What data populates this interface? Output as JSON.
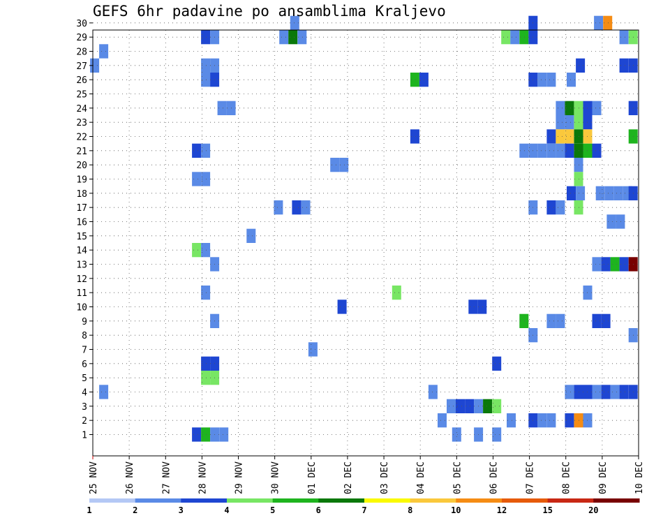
{
  "title": "GEFS 6hr padavine po ansamblima Kraljevo",
  "chart_data": {
    "type": "heatmap",
    "title": "GEFS 6hr padavine po ansamblima Kraljevo",
    "xlabel": "",
    "ylabel": "",
    "x_tick_labels": [
      "25 NOV",
      "26 NOV",
      "27 NOV",
      "28 NOV",
      "29 NOV",
      "30 NOV",
      "01 DEC",
      "02 DEC",
      "03 DEC",
      "04 DEC",
      "05 DEC",
      "06 DEC",
      "07 DEC",
      "08 DEC",
      "09 DEC",
      "10 DEC"
    ],
    "y_tick_labels": [
      "1",
      "2",
      "3",
      "4",
      "5",
      "6",
      "7",
      "8",
      "9",
      "10",
      "11",
      "12",
      "13",
      "14",
      "15",
      "16",
      "17",
      "18",
      "19",
      "20",
      "21",
      "22",
      "23",
      "24",
      "25",
      "26",
      "27",
      "28",
      "29",
      "30"
    ],
    "ylim": [
      0,
      30
    ],
    "grid": true,
    "colorbar": {
      "boundaries": [
        "1",
        "2",
        "3",
        "4",
        "5",
        "6",
        "7",
        "8",
        "10",
        "12",
        "15",
        "20"
      ],
      "colors": [
        "#b4c8f5",
        "#5a8ae6",
        "#1e46d2",
        "#78e664",
        "#1eb41e",
        "#0a780a",
        "#fafa00",
        "#fac83c",
        "#f58c14",
        "#e65a0a",
        "#c82814",
        "#780000"
      ]
    },
    "cells": [
      {
        "member": 30,
        "t": [
          5.55
        ],
        "c": 1
      },
      {
        "member": 30,
        "t": [
          12.1
        ],
        "c": 2
      },
      {
        "member": 30,
        "t": [
          13.9
        ],
        "c": 1
      },
      {
        "member": 30,
        "t": [
          14.15
        ],
        "c": 8
      },
      {
        "member": 29,
        "t": [
          3.1
        ],
        "c": 2
      },
      {
        "member": 29,
        "t": [
          3.35
        ],
        "c": 1
      },
      {
        "member": 29,
        "t": [
          5.25
        ],
        "c": 1
      },
      {
        "member": 29,
        "t": [
          5.5
        ],
        "c": 5
      },
      {
        "member": 29,
        "t": [
          5.75
        ],
        "c": 1
      },
      {
        "member": 29,
        "t": [
          11.35
        ],
        "c": 3
      },
      {
        "member": 29,
        "t": [
          11.6
        ],
        "c": 1
      },
      {
        "member": 29,
        "t": [
          11.85
        ],
        "c": 4
      },
      {
        "member": 29,
        "t": [
          12.1
        ],
        "c": 2
      },
      {
        "member": 29,
        "t": [
          14.6
        ],
        "c": 1
      },
      {
        "member": 29,
        "t": [
          14.85
        ],
        "c": 3
      },
      {
        "member": 28,
        "t": [
          0.3
        ],
        "c": 1
      },
      {
        "member": 27,
        "t": [
          0.05
        ],
        "c": 1
      },
      {
        "member": 27,
        "t": [
          3.1,
          3.35
        ],
        "c": 1
      },
      {
        "member": 27,
        "t": [
          13.4
        ],
        "c": 2
      },
      {
        "member": 27,
        "t": [
          14.6,
          14.85
        ],
        "c": 2
      },
      {
        "member": 26,
        "t": [
          3.1
        ],
        "c": 1
      },
      {
        "member": 26,
        "t": [
          3.35
        ],
        "c": 2
      },
      {
        "member": 26,
        "t": [
          8.85
        ],
        "c": 4
      },
      {
        "member": 26,
        "t": [
          9.1
        ],
        "c": 2
      },
      {
        "member": 26,
        "t": [
          12.1
        ],
        "c": 2
      },
      {
        "member": 26,
        "t": [
          12.35,
          12.6
        ],
        "c": 1
      },
      {
        "member": 26,
        "t": [
          13.15
        ],
        "c": 1
      },
      {
        "member": 24,
        "t": [
          3.55,
          3.8
        ],
        "c": 1
      },
      {
        "member": 24,
        "t": [
          12.85
        ],
        "c": 1
      },
      {
        "member": 24,
        "t": [
          13.1
        ],
        "c": 5
      },
      {
        "member": 24,
        "t": [
          13.35
        ],
        "c": 3
      },
      {
        "member": 24,
        "t": [
          13.6
        ],
        "c": 2
      },
      {
        "member": 24,
        "t": [
          13.85
        ],
        "c": 1
      },
      {
        "member": 24,
        "t": [
          14.85
        ],
        "c": 2
      },
      {
        "member": 23,
        "t": [
          12.85,
          13.1
        ],
        "c": 1
      },
      {
        "member": 23,
        "t": [
          13.35
        ],
        "c": 3
      },
      {
        "member": 23,
        "t": [
          13.6
        ],
        "c": 2
      },
      {
        "member": 22,
        "t": [
          8.85
        ],
        "c": 2
      },
      {
        "member": 22,
        "t": [
          12.6
        ],
        "c": 2
      },
      {
        "member": 22,
        "t": [
          12.85,
          13.1
        ],
        "c": 7
      },
      {
        "member": 22,
        "t": [
          13.35
        ],
        "c": 5
      },
      {
        "member": 22,
        "t": [
          13.6
        ],
        "c": 7
      },
      {
        "member": 22,
        "t": [
          14.85
        ],
        "c": 4
      },
      {
        "member": 21,
        "t": [
          2.85
        ],
        "c": 2
      },
      {
        "member": 21,
        "t": [
          3.1
        ],
        "c": 1
      },
      {
        "member": 21,
        "t": [
          11.85,
          12.1,
          12.35,
          12.6,
          12.85
        ],
        "c": 1
      },
      {
        "member": 21,
        "t": [
          13.1
        ],
        "c": 2
      },
      {
        "member": 21,
        "t": [
          13.35
        ],
        "c": 5
      },
      {
        "member": 21,
        "t": [
          13.6
        ],
        "c": 4
      },
      {
        "member": 21,
        "t": [
          13.85
        ],
        "c": 2
      },
      {
        "member": 20,
        "t": [
          6.65,
          6.9
        ],
        "c": 1
      },
      {
        "member": 20,
        "t": [
          13.35
        ],
        "c": 1
      },
      {
        "member": 19,
        "t": [
          2.85,
          3.1
        ],
        "c": 1
      },
      {
        "member": 19,
        "t": [
          13.35
        ],
        "c": 3
      },
      {
        "member": 18,
        "t": [
          13.15
        ],
        "c": 2
      },
      {
        "member": 18,
        "t": [
          13.4
        ],
        "c": 1
      },
      {
        "member": 18,
        "t": [
          13.95,
          14.2,
          14.45,
          14.7
        ],
        "c": 1
      },
      {
        "member": 18,
        "t": [
          14.85
        ],
        "c": 2
      },
      {
        "member": 17,
        "t": [
          5.1
        ],
        "c": 1
      },
      {
        "member": 17,
        "t": [
          5.6
        ],
        "c": 2
      },
      {
        "member": 17,
        "t": [
          5.85
        ],
        "c": 1
      },
      {
        "member": 17,
        "t": [
          12.1
        ],
        "c": 1
      },
      {
        "member": 17,
        "t": [
          12.6
        ],
        "c": 2
      },
      {
        "member": 17,
        "t": [
          12.85
        ],
        "c": 1
      },
      {
        "member": 17,
        "t": [
          13.35
        ],
        "c": 3
      },
      {
        "member": 16,
        "t": [
          14.25,
          14.5
        ],
        "c": 1
      },
      {
        "member": 15,
        "t": [
          4.35
        ],
        "c": 1
      },
      {
        "member": 14,
        "t": [
          2.85
        ],
        "c": 3
      },
      {
        "member": 14,
        "t": [
          3.1
        ],
        "c": 1
      },
      {
        "member": 13,
        "t": [
          3.35
        ],
        "c": 1
      },
      {
        "member": 13,
        "t": [
          13.85
        ],
        "c": 1
      },
      {
        "member": 13,
        "t": [
          14.1
        ],
        "c": 2
      },
      {
        "member": 13,
        "t": [
          14.35
        ],
        "c": 4
      },
      {
        "member": 13,
        "t": [
          14.6
        ],
        "c": 2
      },
      {
        "member": 13,
        "t": [
          14.85
        ],
        "c": 11
      },
      {
        "member": 11,
        "t": [
          8.35
        ],
        "c": 3
      },
      {
        "member": 11,
        "t": [
          3.1
        ],
        "c": 1
      },
      {
        "member": 11,
        "t": [
          13.6
        ],
        "c": 1
      },
      {
        "member": 10,
        "t": [
          6.85
        ],
        "c": 2
      },
      {
        "member": 10,
        "t": [
          10.45,
          10.7
        ],
        "c": 2
      },
      {
        "member": 9,
        "t": [
          3.35
        ],
        "c": 1
      },
      {
        "member": 9,
        "t": [
          11.85
        ],
        "c": 4
      },
      {
        "member": 9,
        "t": [
          12.6,
          12.85
        ],
        "c": 1
      },
      {
        "member": 9,
        "t": [
          13.85,
          14.1
        ],
        "c": 2
      },
      {
        "member": 8,
        "t": [
          12.1
        ],
        "c": 1
      },
      {
        "member": 8,
        "t": [
          14.85
        ],
        "c": 1
      },
      {
        "member": 7,
        "t": [
          6.05
        ],
        "c": 1
      },
      {
        "member": 6,
        "t": [
          3.1,
          3.35
        ],
        "c": 2
      },
      {
        "member": 6,
        "t": [
          11.1
        ],
        "c": 2
      },
      {
        "member": 5,
        "t": [
          3.1,
          3.35
        ],
        "c": 3
      },
      {
        "member": 4,
        "t": [
          0.3
        ],
        "c": 1
      },
      {
        "member": 4,
        "t": [
          9.35
        ],
        "c": 1
      },
      {
        "member": 4,
        "t": [
          13.1
        ],
        "c": 1
      },
      {
        "member": 4,
        "t": [
          13.35,
          13.6
        ],
        "c": 2
      },
      {
        "member": 4,
        "t": [
          13.85
        ],
        "c": 1
      },
      {
        "member": 4,
        "t": [
          14.1
        ],
        "c": 2
      },
      {
        "member": 4,
        "t": [
          14.35
        ],
        "c": 1
      },
      {
        "member": 4,
        "t": [
          14.6,
          14.85
        ],
        "c": 2
      },
      {
        "member": 3,
        "t": [
          9.85
        ],
        "c": 1
      },
      {
        "member": 3,
        "t": [
          10.1,
          10.35
        ],
        "c": 2
      },
      {
        "member": 3,
        "t": [
          10.6
        ],
        "c": 1
      },
      {
        "member": 3,
        "t": [
          10.85
        ],
        "c": 5
      },
      {
        "member": 3,
        "t": [
          11.1
        ],
        "c": 3
      },
      {
        "member": 2,
        "t": [
          9.6
        ],
        "c": 1
      },
      {
        "member": 2,
        "t": [
          11.5
        ],
        "c": 1
      },
      {
        "member": 2,
        "t": [
          12.1
        ],
        "c": 2
      },
      {
        "member": 2,
        "t": [
          12.35,
          12.6
        ],
        "c": 1
      },
      {
        "member": 2,
        "t": [
          13.1
        ],
        "c": 2
      },
      {
        "member": 2,
        "t": [
          13.35
        ],
        "c": 8
      },
      {
        "member": 2,
        "t": [
          13.6
        ],
        "c": 1
      },
      {
        "member": 1,
        "t": [
          2.85
        ],
        "c": 2
      },
      {
        "member": 1,
        "t": [
          3.1
        ],
        "c": 4
      },
      {
        "member": 1,
        "t": [
          3.35,
          3.6
        ],
        "c": 1
      },
      {
        "member": 1,
        "t": [
          10.0
        ],
        "c": 1
      },
      {
        "member": 1,
        "t": [
          10.6
        ],
        "c": 1
      },
      {
        "member": 1,
        "t": [
          11.1
        ],
        "c": 1
      }
    ]
  }
}
